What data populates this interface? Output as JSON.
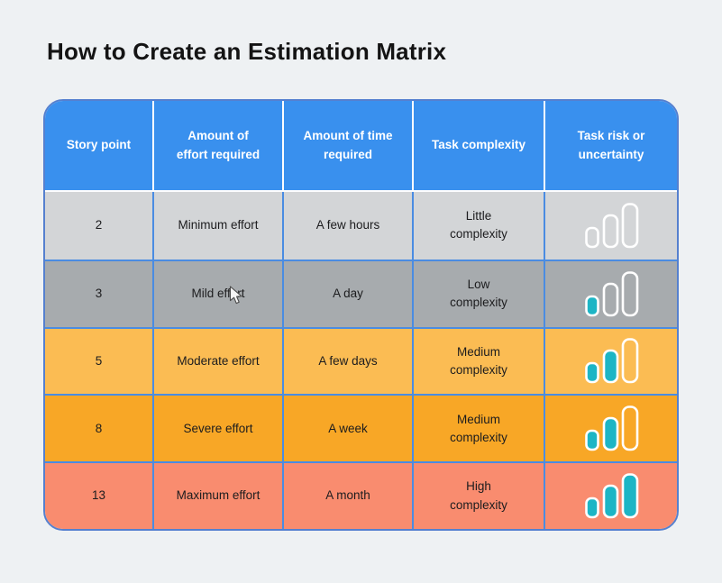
{
  "page": {
    "title": "How to Create an Estimation Matrix"
  },
  "table": {
    "headers": [
      {
        "label": "Story point"
      },
      {
        "label": "Amount of\neffort required"
      },
      {
        "label": "Amount of time\nrequired"
      },
      {
        "label": "Task complexity"
      },
      {
        "label": "Task risk or\nuncertainty"
      }
    ],
    "rows": [
      {
        "story_point": "2",
        "effort": "Minimum effort",
        "time": "A few hours",
        "complexity": "Little\ncomplexity",
        "risk_bars_filled": 0,
        "risk_bars_total": 3,
        "row_color": "#d3d5d7"
      },
      {
        "story_point": "3",
        "effort": "Mild effort",
        "time": "A day",
        "complexity": "Low\ncomplexity",
        "risk_bars_filled": 1,
        "risk_bars_total": 3,
        "row_color": "#a7abae"
      },
      {
        "story_point": "5",
        "effort": "Moderate effort",
        "time": "A few days",
        "complexity": "Medium\ncomplexity",
        "risk_bars_filled": 2,
        "risk_bars_total": 3,
        "row_color": "#fbbc53"
      },
      {
        "story_point": "8",
        "effort": "Severe effort",
        "time": "A week",
        "complexity": "Medium\ncomplexity",
        "risk_bars_filled": 2,
        "risk_bars_total": 3,
        "row_color": "#f8a726"
      },
      {
        "story_point": "13",
        "effort": "Maximum effort",
        "time": "A month",
        "complexity": "High\ncomplexity",
        "risk_bars_filled": 3,
        "risk_bars_total": 3,
        "row_color": "#f98c6f"
      }
    ]
  },
  "chart_data": {
    "type": "table",
    "title": "How to Create an Estimation Matrix",
    "columns": [
      "Story point",
      "Amount of effort required",
      "Amount of time required",
      "Task complexity",
      "Task risk or uncertainty"
    ],
    "rows": [
      [
        "2",
        "Minimum effort",
        "A few hours",
        "Little complexity",
        "risk level 0 of 3"
      ],
      [
        "3",
        "Mild effort",
        "A day",
        "Low complexity",
        "risk level 1 of 3"
      ],
      [
        "5",
        "Moderate effort",
        "A few days",
        "Medium complexity",
        "risk level 2 of 3"
      ],
      [
        "8",
        "Severe effort",
        "A week",
        "Medium complexity",
        "risk level 2 of 3"
      ],
      [
        "13",
        "Maximum effort",
        "A month",
        "High complexity",
        "risk level 3 of 3"
      ]
    ]
  },
  "icons": {
    "risk_icon": "signal-bars-icon",
    "cursor_icon": "mouse-pointer-icon"
  },
  "colors": {
    "page_background": "#eef1f3",
    "header_background": "#3990ee",
    "header_text": "#ffffff",
    "body_text": "#1c1c1e",
    "grid_border": "#4a8ce2",
    "outer_border": "#5580cf",
    "header_divider": "#fdfdfe",
    "bar_fill": "#1db5c5",
    "bar_outline": "#ffffff"
  }
}
